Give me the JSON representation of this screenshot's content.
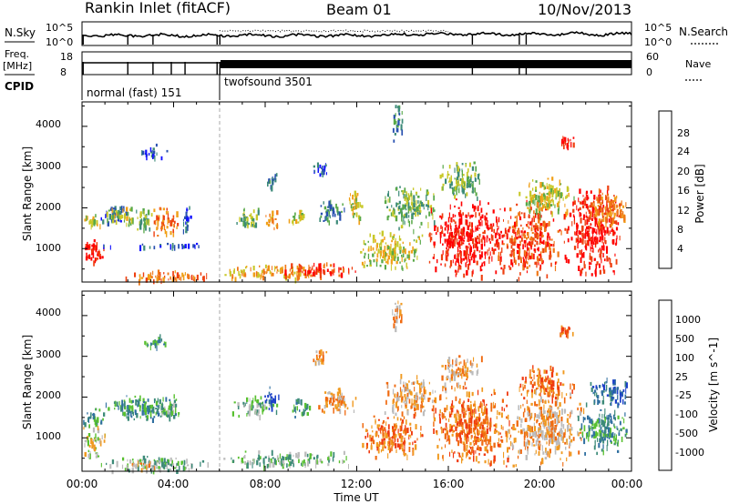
{
  "header": {
    "station": "Rankin Inlet (fitACF)",
    "beam": "Beam 01",
    "date": "10/Nov/2013"
  },
  "top_panels": {
    "nsky_label": "N.Sky",
    "nsearch_label": "N.Search",
    "noise_ticks_left": [
      "10^5",
      "10^0"
    ],
    "noise_ticks_right": [
      "10^5",
      "10^0"
    ],
    "freq_label_1": "Freq.",
    "freq_label_2": "[MHz]",
    "freq_ticks": [
      "18",
      "8"
    ],
    "nave_label": "Nave",
    "nave_ticks": [
      "60",
      "0"
    ],
    "cpid_label": "CPID",
    "cpid_entries": [
      {
        "name": "normal (fast) 151",
        "start_hour": 0,
        "end_hour": 6
      },
      {
        "name": "twofsound 3501",
        "start_hour": 6,
        "end_hour": 24
      }
    ]
  },
  "colors": {
    "power_scale": [
      "#1010ff",
      "#2850b0",
      "#3c8a78",
      "#58a848",
      "#c8c828",
      "#f0a018",
      "#f07818",
      "#ee4010",
      "#ff0000"
    ],
    "velocity_scale": [
      "#ff1010",
      "#f03a10",
      "#f06a10",
      "#f09a20",
      "#bcbcbc",
      "#58c030",
      "#3c8a78",
      "#2f6fa0",
      "#1c40c8"
    ]
  },
  "chart_data": [
    {
      "type": "heatmap",
      "name": "power",
      "xlabel": "",
      "ylabel": "Slant Range [km]",
      "xlim": [
        0,
        24
      ],
      "ylim": [
        180,
        4600
      ],
      "y_ticks": [
        "1000",
        "2000",
        "3000",
        "4000"
      ],
      "colorbar_label": "Power [dB]",
      "colorbar_ticks": [
        "4",
        "8",
        "12",
        "16",
        "20",
        "24",
        "28"
      ],
      "blobs": [
        {
          "t0": 0.0,
          "t1": 1.0,
          "r0": 600,
          "r1": 1400,
          "c": 8
        },
        {
          "t0": 0.0,
          "t1": 0.9,
          "r0": 1500,
          "r1": 1900,
          "c": 4
        },
        {
          "t0": 0.8,
          "t1": 2.0,
          "r0": 1600,
          "r1": 2200,
          "c": 1
        },
        {
          "t0": 1.0,
          "t1": 2.3,
          "r0": 1500,
          "r1": 2100,
          "c": 4
        },
        {
          "t0": 2.0,
          "t1": 3.2,
          "r0": 1400,
          "r1": 2000,
          "c": 3
        },
        {
          "t0": 3.0,
          "t1": 4.3,
          "r0": 1300,
          "r1": 2100,
          "c": 6
        },
        {
          "t0": 4.3,
          "t1": 4.8,
          "r0": 1400,
          "r1": 2100,
          "c": 1
        },
        {
          "t0": 1.6,
          "t1": 5.8,
          "r0": 200,
          "r1": 500,
          "c": 6
        },
        {
          "t0": 0.5,
          "t1": 5.5,
          "r0": 1050,
          "r1": 1150,
          "c": 1
        },
        {
          "t0": 6.6,
          "t1": 7.8,
          "r0": 1500,
          "r1": 2100,
          "c": 3
        },
        {
          "t0": 7.8,
          "t1": 8.6,
          "r0": 1500,
          "r1": 2000,
          "c": 5
        },
        {
          "t0": 9.0,
          "t1": 9.8,
          "r0": 1600,
          "r1": 2000,
          "c": 4
        },
        {
          "t0": 10.2,
          "t1": 11.5,
          "r0": 1600,
          "r1": 2300,
          "c": 2
        },
        {
          "t0": 11.5,
          "t1": 12.3,
          "r0": 1700,
          "r1": 2500,
          "c": 4
        },
        {
          "t0": 6.0,
          "t1": 10.5,
          "r0": 250,
          "r1": 650,
          "c": 5
        },
        {
          "t0": 8.5,
          "t1": 12.0,
          "r0": 300,
          "r1": 700,
          "c": 7
        },
        {
          "t0": 12.0,
          "t1": 15.0,
          "r0": 500,
          "r1": 1500,
          "c": 4
        },
        {
          "t0": 13.0,
          "t1": 15.5,
          "r0": 1500,
          "r1": 2600,
          "c": 3
        },
        {
          "t0": 15.0,
          "t1": 18.5,
          "r0": 300,
          "r1": 2300,
          "c": 8
        },
        {
          "t0": 15.5,
          "t1": 17.5,
          "r0": 2200,
          "r1": 3200,
          "c": 3
        },
        {
          "t0": 18.0,
          "t1": 21.0,
          "r0": 300,
          "r1": 2200,
          "c": 7
        },
        {
          "t0": 19.0,
          "t1": 21.5,
          "r0": 1800,
          "r1": 2800,
          "c": 4
        },
        {
          "t0": 21.0,
          "t1": 23.5,
          "r0": 300,
          "r1": 2600,
          "c": 8
        },
        {
          "t0": 22.0,
          "t1": 24.0,
          "r0": 1500,
          "r1": 2500,
          "c": 6
        },
        {
          "t0": 20.8,
          "t1": 21.5,
          "r0": 3500,
          "r1": 3800,
          "c": 8
        },
        {
          "t0": 13.5,
          "t1": 14.0,
          "r0": 3600,
          "r1": 4600,
          "c": 2
        },
        {
          "t0": 2.5,
          "t1": 3.7,
          "r0": 3200,
          "r1": 3600,
          "c": 1
        },
        {
          "t0": 8.0,
          "t1": 8.5,
          "r0": 2500,
          "r1": 2900,
          "c": 2
        },
        {
          "t0": 10.0,
          "t1": 10.8,
          "r0": 2800,
          "r1": 3200,
          "c": 1
        }
      ]
    },
    {
      "type": "heatmap",
      "name": "velocity",
      "xlabel": "Time UT",
      "ylabel": "Slant Range [km]",
      "xlim": [
        0,
        24
      ],
      "ylim": [
        180,
        4600
      ],
      "x_ticks": [
        "00:00",
        "04:00",
        "08:00",
        "12:00",
        "16:00",
        "20:00",
        "00:00"
      ],
      "y_ticks": [
        "1000",
        "2000",
        "3000",
        "4000"
      ],
      "colorbar_label": "Velocity [m s^-1]",
      "colorbar_ticks": [
        "-1000",
        "-500",
        "-100",
        "-25",
        "25",
        "100",
        "500",
        "1000"
      ],
      "blobs": [
        {
          "t0": 0.0,
          "t1": 1.0,
          "r0": 500,
          "r1": 1400,
          "c": 4
        },
        {
          "t0": 0.0,
          "t1": 1.0,
          "r0": 1300,
          "r1": 1800,
          "c": 6
        },
        {
          "t0": 0.9,
          "t1": 4.6,
          "r0": 1400,
          "r1": 2100,
          "c": 6
        },
        {
          "t0": 3.0,
          "t1": 4.5,
          "r0": 1500,
          "r1": 2000,
          "c": 5
        },
        {
          "t0": 0.5,
          "t1": 5.8,
          "r0": 200,
          "r1": 600,
          "c": 5
        },
        {
          "t0": 2.0,
          "t1": 3.5,
          "r0": 250,
          "r1": 450,
          "c": 3
        },
        {
          "t0": 6.5,
          "t1": 8.5,
          "r0": 1500,
          "r1": 2100,
          "c": 5
        },
        {
          "t0": 7.8,
          "t1": 8.6,
          "r0": 1700,
          "r1": 2300,
          "c": 8
        },
        {
          "t0": 9.0,
          "t1": 10.0,
          "r0": 1500,
          "r1": 2000,
          "c": 6
        },
        {
          "t0": 10.2,
          "t1": 12.0,
          "r0": 1600,
          "r1": 2300,
          "c": 3
        },
        {
          "t0": 6.0,
          "t1": 12.0,
          "r0": 300,
          "r1": 700,
          "c": 5
        },
        {
          "t0": 12.0,
          "t1": 15.0,
          "r0": 500,
          "r1": 1600,
          "c": 2
        },
        {
          "t0": 13.0,
          "t1": 15.5,
          "r0": 1500,
          "r1": 2600,
          "c": 3
        },
        {
          "t0": 15.0,
          "t1": 19.0,
          "r0": 300,
          "r1": 2300,
          "c": 2
        },
        {
          "t0": 15.5,
          "t1": 17.5,
          "r0": 2200,
          "r1": 3100,
          "c": 3
        },
        {
          "t0": 18.5,
          "t1": 22.0,
          "r0": 300,
          "r1": 2200,
          "c": 3
        },
        {
          "t0": 19.0,
          "t1": 21.5,
          "r0": 1900,
          "r1": 2800,
          "c": 2
        },
        {
          "t0": 21.5,
          "t1": 24.0,
          "r0": 600,
          "r1": 1800,
          "c": 6
        },
        {
          "t0": 22.0,
          "t1": 24.0,
          "r0": 1800,
          "r1": 2500,
          "c": 7
        },
        {
          "t0": 20.8,
          "t1": 21.5,
          "r0": 3500,
          "r1": 3800,
          "c": 2
        },
        {
          "t0": 13.5,
          "t1": 14.0,
          "r0": 3600,
          "r1": 4500,
          "c": 3
        },
        {
          "t0": 2.5,
          "t1": 3.7,
          "r0": 3200,
          "r1": 3600,
          "c": 6
        },
        {
          "t0": 10.0,
          "t1": 10.8,
          "r0": 2800,
          "r1": 3200,
          "c": 3
        }
      ]
    }
  ]
}
